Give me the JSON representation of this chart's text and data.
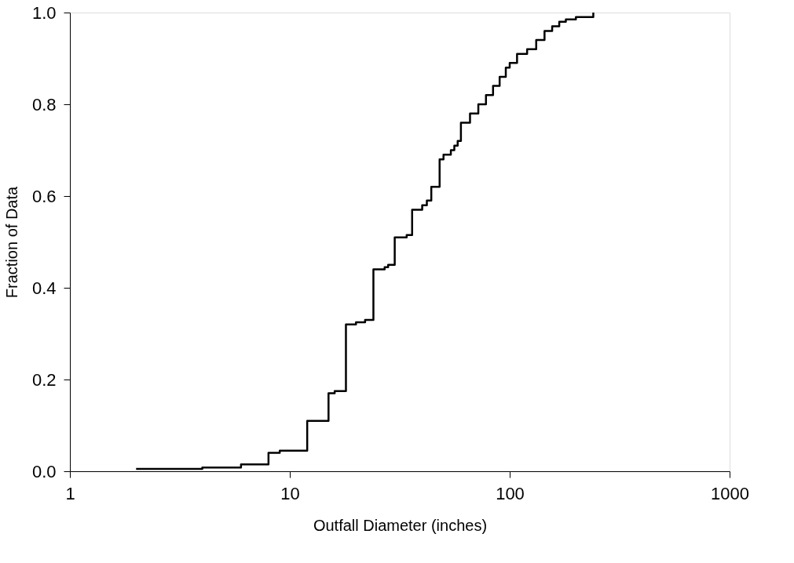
{
  "chart_data": {
    "type": "step",
    "xlabel": "Outfall Diameter (inches)",
    "ylabel": "Fraction of Data",
    "log": "x",
    "xlim": [
      1,
      1000
    ],
    "xticks": [
      1,
      10,
      100,
      1000
    ],
    "ylim": [
      0,
      1
    ],
    "yticks": [
      {
        "value": 0,
        "label": "0.0"
      },
      {
        "value": 0.2,
        "label": "0.2"
      },
      {
        "value": 0.4,
        "label": "0.4"
      },
      {
        "value": 0.6,
        "label": "0.6"
      },
      {
        "value": 0.8,
        "label": "0.8"
      },
      {
        "value": 1,
        "label": "1.0"
      }
    ],
    "grid": false,
    "line_style": "solid",
    "series": [
      {
        "color": "#000000",
        "x": [
          2,
          4,
          6,
          8,
          9,
          10,
          12,
          13,
          14,
          15,
          16,
          18,
          20,
          22,
          24,
          27,
          28,
          30,
          32,
          34,
          36,
          40,
          42,
          44,
          48,
          50,
          54,
          56,
          58,
          60,
          66,
          72,
          78,
          84,
          90,
          96,
          100,
          108,
          120,
          132,
          144,
          156,
          168,
          180,
          200,
          240
        ],
        "values": [
          0.005,
          0.008,
          0.015,
          0.04,
          0.045,
          0.045,
          0.11,
          0.11,
          0.11,
          0.17,
          0.175,
          0.32,
          0.325,
          0.33,
          0.44,
          0.445,
          0.45,
          0.51,
          0.51,
          0.515,
          0.57,
          0.58,
          0.59,
          0.62,
          0.68,
          0.69,
          0.7,
          0.71,
          0.72,
          0.76,
          0.78,
          0.8,
          0.82,
          0.84,
          0.86,
          0.88,
          0.89,
          0.91,
          0.92,
          0.94,
          0.96,
          0.97,
          0.98,
          0.985,
          0.99,
          1.0
        ]
      }
    ]
  }
}
